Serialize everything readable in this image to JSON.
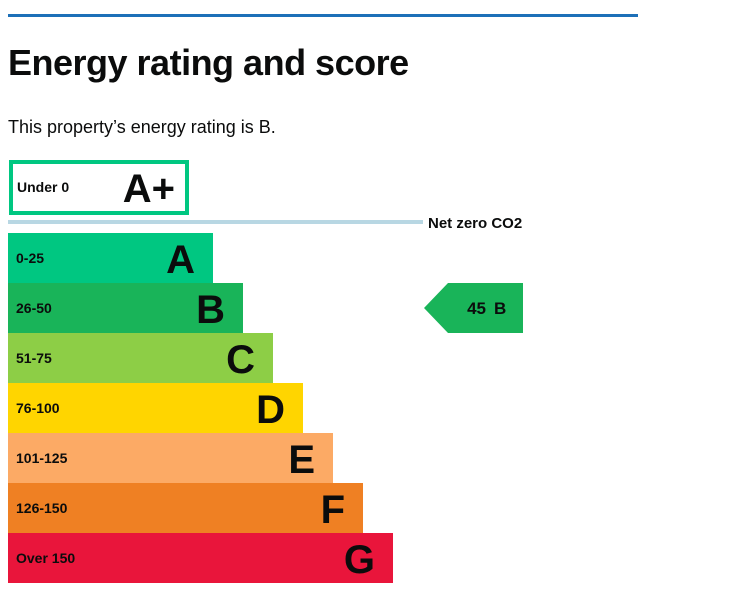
{
  "page": {
    "heading": "Energy rating and score",
    "intro": "This property’s energy rating is B."
  },
  "chart_data": {
    "type": "bar",
    "bands": [
      {
        "range": "Under 0",
        "letter": "A+",
        "color": "#00c781",
        "outlined": true
      },
      {
        "range": "0-25",
        "letter": "A",
        "color": "#00c781"
      },
      {
        "range": "26-50",
        "letter": "B",
        "color": "#19b459"
      },
      {
        "range": "51-75",
        "letter": "C",
        "color": "#8dce46"
      },
      {
        "range": "76-100",
        "letter": "D",
        "color": "#ffd500"
      },
      {
        "range": "101-125",
        "letter": "E",
        "color": "#fcaa65"
      },
      {
        "range": "126-150",
        "letter": "F",
        "color": "#ef8023"
      },
      {
        "range": "Over 150",
        "letter": "G",
        "color": "#e9153b"
      }
    ],
    "net_zero_label": "Net zero CO2",
    "net_zero_line_color": "#b8d7e3",
    "current": {
      "score": "45",
      "letter": "B",
      "band_index": 2,
      "color": "#19b459"
    }
  }
}
